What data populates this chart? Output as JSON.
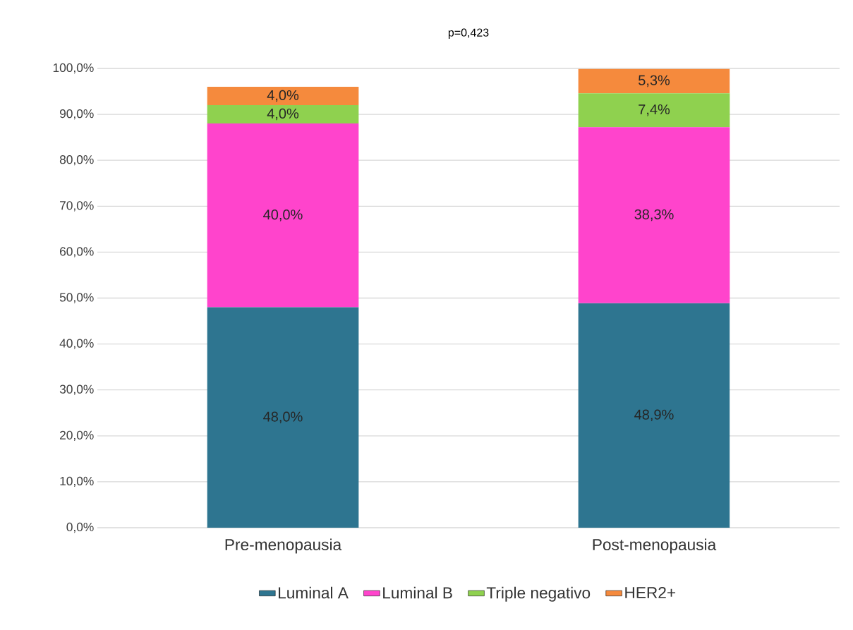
{
  "chart_data": {
    "type": "bar",
    "title": "p=0,423",
    "stacked": true,
    "categories": [
      "Pre-menopausia",
      "Post-menopausia"
    ],
    "series": [
      {
        "name": "Luminal A",
        "color": "#2e7590",
        "values": [
          48.0,
          48.9
        ],
        "value_labels": [
          "48,0%",
          "48,9%"
        ]
      },
      {
        "name": "Luminal B",
        "color": "#ff44cc",
        "values": [
          40.0,
          38.3
        ],
        "value_labels": [
          "40,0%",
          "38,3%"
        ]
      },
      {
        "name": "Triple negativo",
        "color": "#8fd14f",
        "values": [
          4.0,
          7.4
        ],
        "value_labels": [
          "4,0%",
          "7,4%"
        ]
      },
      {
        "name": "HER2+",
        "color": "#f58a3d",
        "values": [
          4.0,
          5.3
        ],
        "value_labels": [
          "4,0%",
          "5,3%"
        ]
      }
    ],
    "ylim": [
      0,
      100
    ],
    "yticks": [
      {
        "value": 0,
        "label": "0,0%"
      },
      {
        "value": 10,
        "label": "10,0%"
      },
      {
        "value": 20,
        "label": "20,0%"
      },
      {
        "value": 30,
        "label": "30,0%"
      },
      {
        "value": 40,
        "label": "40,0%"
      },
      {
        "value": 50,
        "label": "50,0%"
      },
      {
        "value": 60,
        "label": "60,0%"
      },
      {
        "value": 70,
        "label": "70,0%"
      },
      {
        "value": 80,
        "label": "80,0%"
      },
      {
        "value": 90,
        "label": "90,0%"
      },
      {
        "value": 100,
        "label": "100,0%"
      }
    ],
    "grid": "y",
    "legend": "bottom"
  }
}
